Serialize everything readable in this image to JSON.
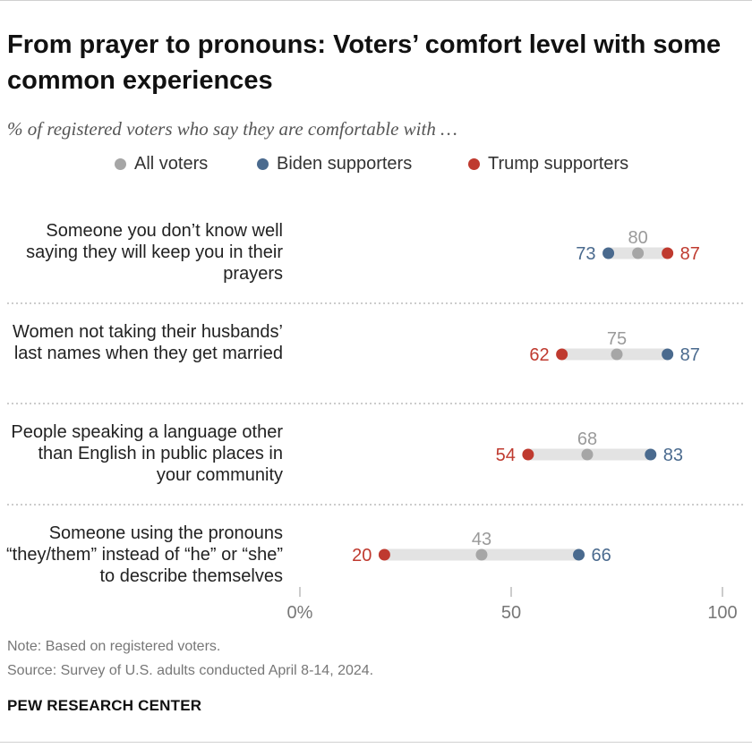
{
  "header": {
    "title": "From prayer to pronouns: Voters’ comfort level with some common experiences",
    "subtitle": "% of registered voters who say they are comfortable with …"
  },
  "legend": [
    {
      "label": "All voters",
      "color": "#a6a6a6"
    },
    {
      "label": "Biden supporters",
      "color": "#4a6a8e"
    },
    {
      "label": "Trump supporters",
      "color": "#bf3a2f"
    }
  ],
  "chart_data": {
    "type": "dot",
    "xlim": [
      0,
      100
    ],
    "ticks": [
      {
        "value": 0,
        "label": "0%"
      },
      {
        "value": 50,
        "label": "50"
      },
      {
        "value": 100,
        "label": "100"
      }
    ],
    "series": [
      {
        "name": "All voters",
        "color": "#a6a6a6"
      },
      {
        "name": "Biden supporters",
        "color": "#4a6a8e"
      },
      {
        "name": "Trump supporters",
        "color": "#bf3a2f"
      }
    ],
    "rows": [
      {
        "label": "Someone you don’t know well saying they will keep you in their prayers",
        "all": 80,
        "biden": 73,
        "trump": 87
      },
      {
        "label": "Women not taking their husbands’ last names when they get married",
        "all": 75,
        "biden": 87,
        "trump": 62
      },
      {
        "label": "People speaking a language other than English in public places in your community",
        "all": 68,
        "biden": 83,
        "trump": 54
      },
      {
        "label": "Someone using the pronouns “they/them” instead of “he” or “she” to describe themselves",
        "all": 43,
        "biden": 66,
        "trump": 20
      }
    ]
  },
  "footer": {
    "note": "Note: Based on registered voters.",
    "source": "Source: Survey of U.S. adults conducted April 8-14, 2024.",
    "brand": "PEW RESEARCH CENTER"
  }
}
